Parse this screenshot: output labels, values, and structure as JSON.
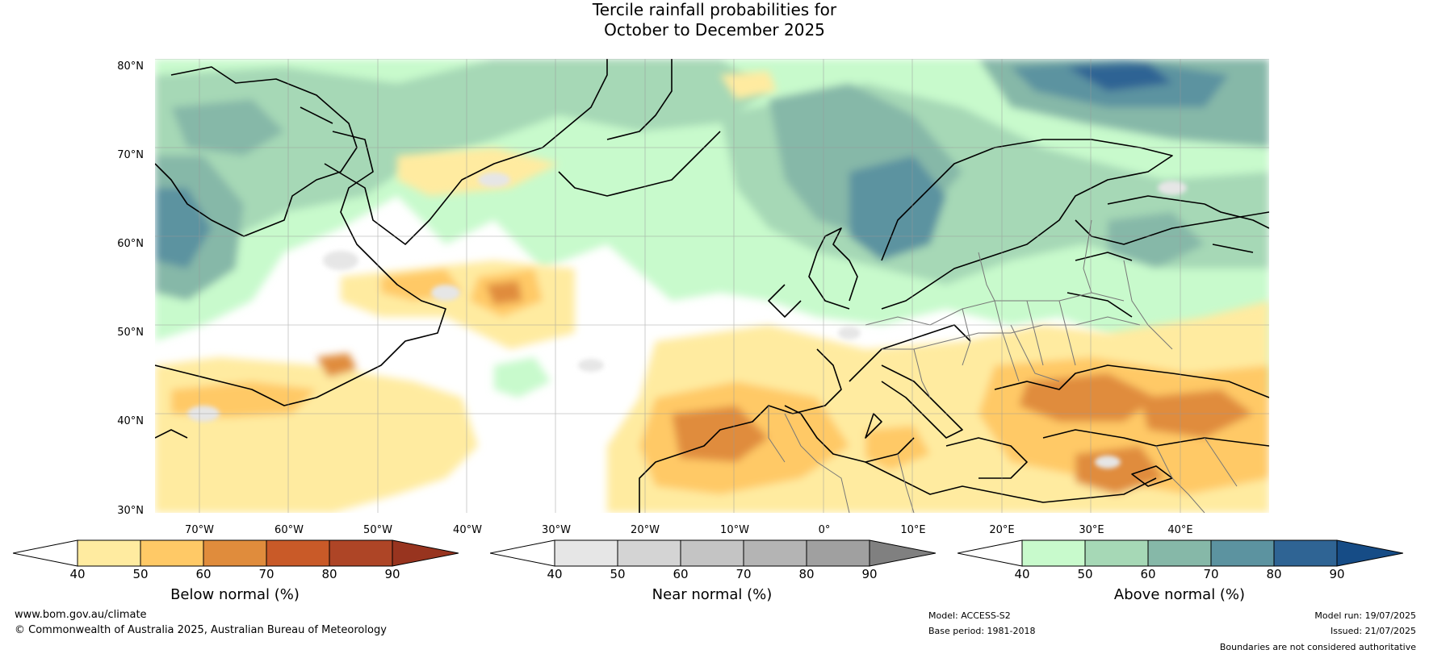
{
  "title_line1": "Tercile rainfall probabilities for",
  "title_line2": "October to December 2025",
  "lat_labels": [
    "80°N",
    "70°N",
    "60°N",
    "50°N",
    "40°N",
    "30°N"
  ],
  "lon_labels": [
    "70°W",
    "60°W",
    "50°W",
    "40°W",
    "30°W",
    "20°W",
    "10°W",
    "0°",
    "10°E",
    "20°E",
    "30°E",
    "40°E"
  ],
  "colorbars": {
    "below": {
      "label": "Below normal (%)",
      "ticks": [
        "40",
        "50",
        "60",
        "70",
        "80",
        "90"
      ],
      "colors": [
        "#ffeba0",
        "#ffc966",
        "#e08c3c",
        "#c95a28",
        "#ae4526"
      ],
      "extend_color": "#98341f"
    },
    "near": {
      "label": "Near normal (%)",
      "ticks": [
        "40",
        "50",
        "60",
        "70",
        "80",
        "90"
      ],
      "colors": [
        "#e6e6e6",
        "#d4d4d4",
        "#c4c4c4",
        "#b4b4b4",
        "#a0a0a0"
      ],
      "extend_color": "#808080"
    },
    "above": {
      "label": "Above normal (%)",
      "ticks": [
        "40",
        "50",
        "60",
        "70",
        "80",
        "90"
      ],
      "colors": [
        "#c8facc",
        "#a6d8b6",
        "#86b8a8",
        "#5c93a0",
        "#2f6494"
      ],
      "extend_color": "#164c86"
    }
  },
  "footer": {
    "website": "www.bom.gov.au/climate",
    "copyright": "© Commonwealth of Australia 2025, Australian Bureau of Meteorology",
    "model": "Model: ACCESS-S2",
    "base_period": "Base period: 1981-2018",
    "model_run": "Model run: 19/07/2025",
    "issued": "Issued: 21/07/2025",
    "disclaimer": "Boundaries are not considered authoritative"
  }
}
